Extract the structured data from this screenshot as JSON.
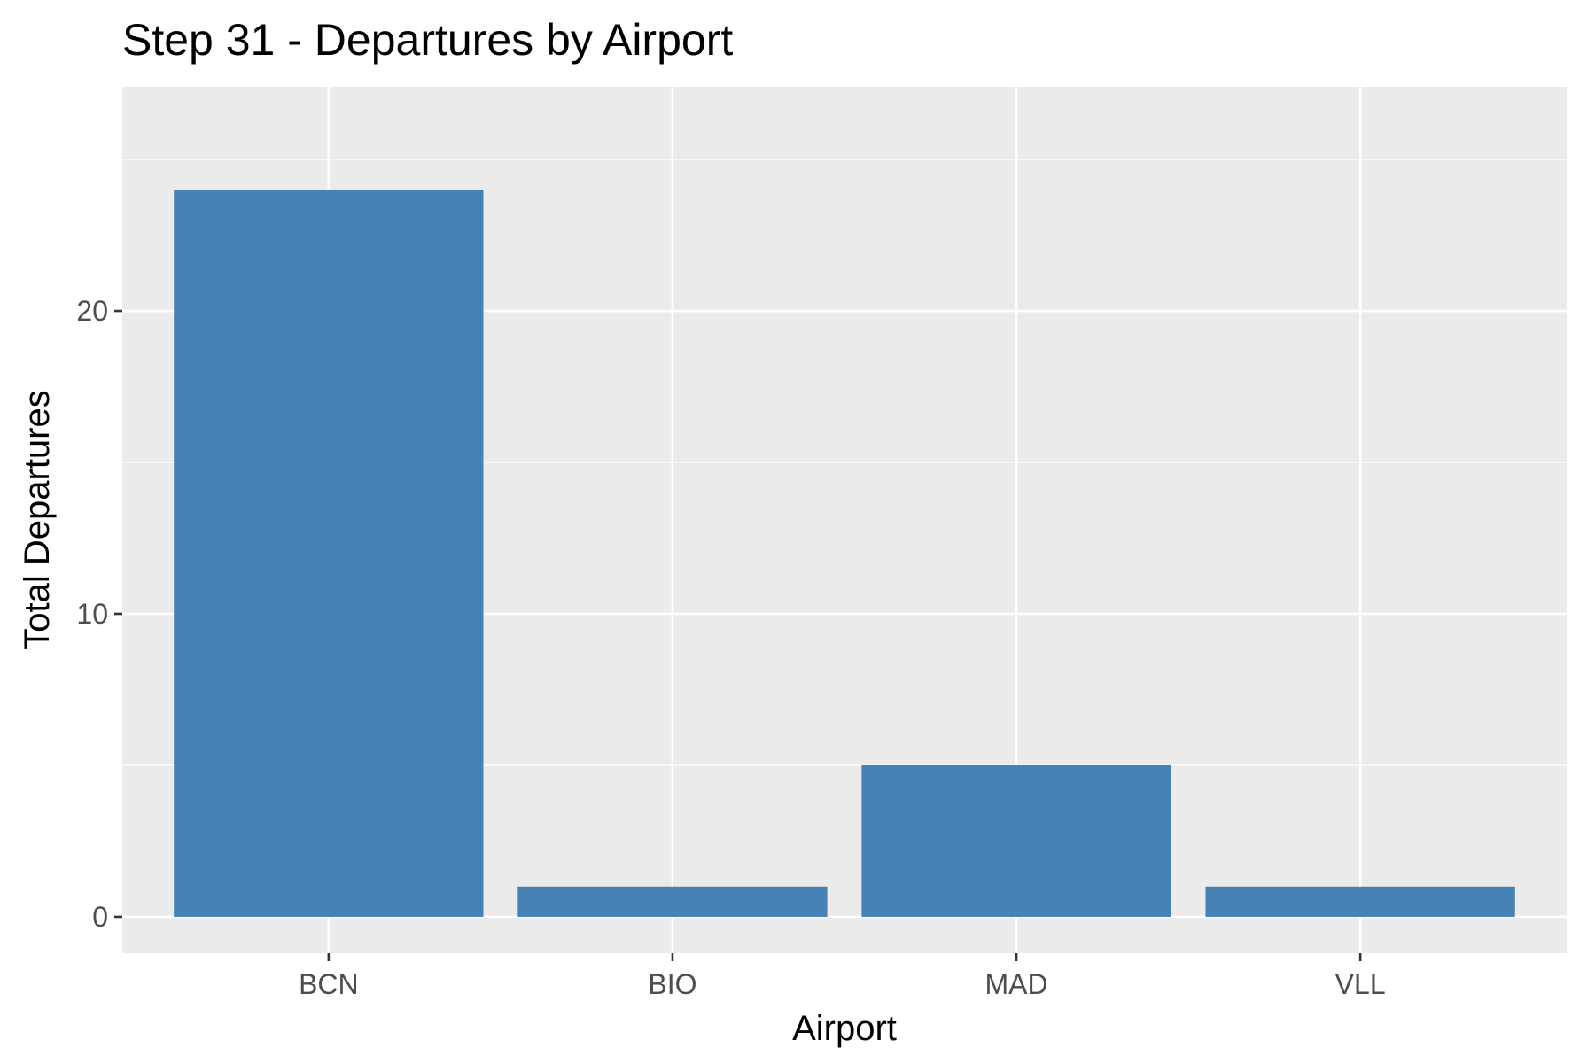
{
  "chart_data": {
    "type": "bar",
    "title": "Step 31 - Departures by Airport",
    "xlabel": "Airport",
    "ylabel": "Total Departures",
    "categories": [
      "BCN",
      "BIO",
      "MAD",
      "VLL"
    ],
    "values": [
      24,
      1,
      5,
      1
    ],
    "yticks": [
      0,
      10,
      20
    ],
    "ylim": [
      -1.2,
      27.4
    ],
    "grid": true,
    "legend": "none"
  },
  "colors": {
    "bar": "#4682b4",
    "panel": "#ebebeb",
    "grid": "#ffffff",
    "tick_text": "#4d4d4d",
    "tick_mark": "#333333"
  }
}
